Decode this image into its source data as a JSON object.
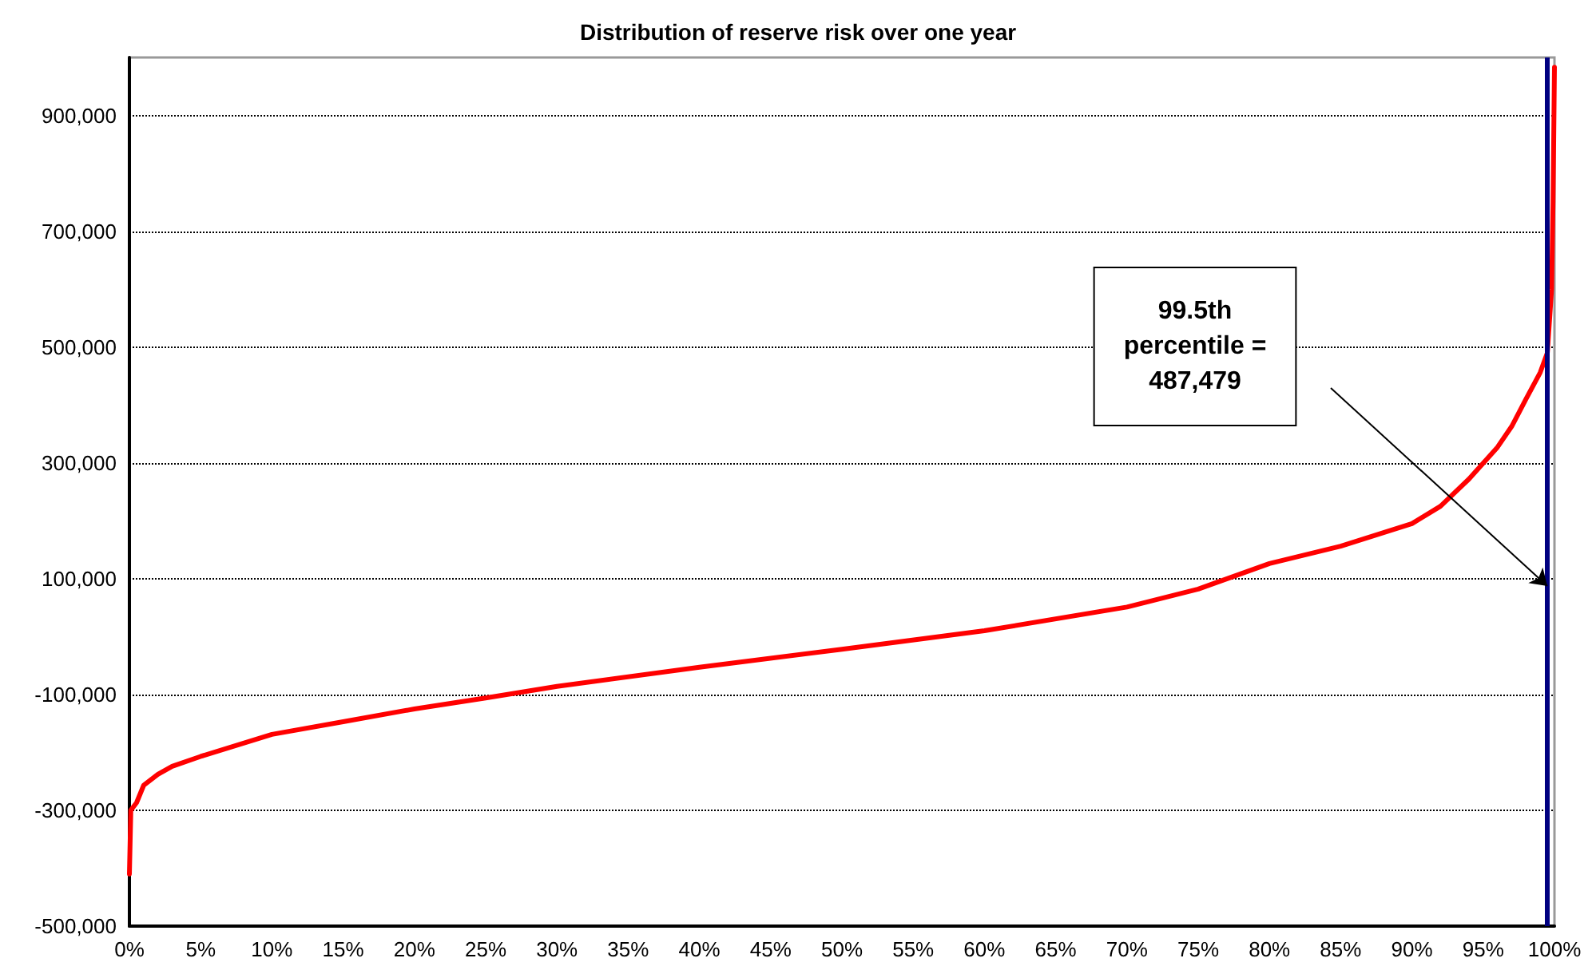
{
  "chart_data": {
    "type": "line",
    "title": "Distribution of reserve risk over one year",
    "x": [
      0,
      0.1,
      0.5,
      1,
      2,
      3,
      5,
      10,
      15,
      20,
      25,
      30,
      40,
      50,
      60,
      70,
      75,
      80,
      85,
      90,
      92,
      94,
      96,
      97,
      98,
      99,
      99.5,
      99.8,
      99.9,
      100
    ],
    "series": [
      {
        "color": "#ff0000",
        "values": [
          -410000,
          -300000,
          -287000,
          -257000,
          -238000,
          -224000,
          -207000,
          -169000,
          -147000,
          -125000,
          -106000,
          -86000,
          -53000,
          -22000,
          10000,
          51000,
          82000,
          126000,
          156000,
          195000,
          225000,
          272000,
          327000,
          363000,
          410000,
          456000,
          490000,
          600000,
          750000,
          983000
        ]
      }
    ],
    "xlim": [
      0,
      100
    ],
    "xticks": [
      {
        "value": 0,
        "label": "0%"
      },
      {
        "value": 5,
        "label": "5%"
      },
      {
        "value": 10,
        "label": "10%"
      },
      {
        "value": 15,
        "label": "15%"
      },
      {
        "value": 20,
        "label": "20%"
      },
      {
        "value": 25,
        "label": "25%"
      },
      {
        "value": 30,
        "label": "30%"
      },
      {
        "value": 35,
        "label": "35%"
      },
      {
        "value": 40,
        "label": "40%"
      },
      {
        "value": 45,
        "label": "45%"
      },
      {
        "value": 50,
        "label": "50%"
      },
      {
        "value": 55,
        "label": "55%"
      },
      {
        "value": 60,
        "label": "60%"
      },
      {
        "value": 65,
        "label": "65%"
      },
      {
        "value": 70,
        "label": "70%"
      },
      {
        "value": 75,
        "label": "75%"
      },
      {
        "value": 80,
        "label": "80%"
      },
      {
        "value": 85,
        "label": "85%"
      },
      {
        "value": 90,
        "label": "90%"
      },
      {
        "value": 95,
        "label": "95%"
      },
      {
        "value": 100,
        "label": "100%"
      }
    ],
    "ylim": [
      -500000,
      1000000
    ],
    "yticks": [
      {
        "value": -500000,
        "label": "-500,000"
      },
      {
        "value": -300000,
        "label": "-300,000"
      },
      {
        "value": -100000,
        "label": "-100,000"
      },
      {
        "value": 100000,
        "label": "100,000"
      },
      {
        "value": 300000,
        "label": "300,000"
      },
      {
        "value": 500000,
        "label": "500,000"
      },
      {
        "value": 700000,
        "label": "700,000"
      },
      {
        "value": 900000,
        "label": "900,000"
      }
    ],
    "grid": "y",
    "marker": "none",
    "line_style": "solid",
    "ref_lines": [
      {
        "axis": "x",
        "value": 99.5,
        "color": "#000080"
      }
    ],
    "annotations": [
      "99.5th\npercentile =\n487,479"
    ]
  }
}
